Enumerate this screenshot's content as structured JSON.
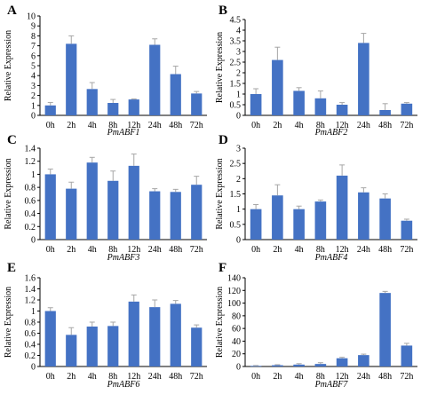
{
  "chart_data": [
    {
      "type": "bar",
      "panel_label": "A",
      "categories": [
        "0h",
        "2h",
        "4h",
        "8h",
        "12h",
        "24h",
        "48h",
        "72h"
      ],
      "values": [
        1.0,
        7.2,
        2.65,
        1.25,
        1.6,
        7.1,
        4.15,
        2.2
      ],
      "errors": [
        0.3,
        0.8,
        0.65,
        0.35,
        0.05,
        0.6,
        0.8,
        0.2
      ],
      "xlabel": "PmABF1",
      "ylabel": "Relative Expression",
      "ylim": [
        0,
        10
      ],
      "yticks": [
        "0",
        "1",
        "2",
        "3",
        "4",
        "5",
        "6",
        "7",
        "8",
        "9",
        "10"
      ],
      "color": "#4472c4"
    },
    {
      "type": "bar",
      "panel_label": "B",
      "categories": [
        "0h",
        "2h",
        "4h",
        "8h",
        "12h",
        "24h",
        "48h",
        "72h"
      ],
      "values": [
        1.0,
        2.6,
        1.15,
        0.8,
        0.5,
        3.4,
        0.25,
        0.55
      ],
      "errors": [
        0.25,
        0.6,
        0.15,
        0.35,
        0.1,
        0.45,
        0.3,
        0.05
      ],
      "xlabel": "PmABF2",
      "ylabel": "Relative Expression",
      "ylim": [
        0,
        4.5
      ],
      "yticks": [
        "0",
        "0.5",
        "1",
        "1.5",
        "2",
        "2.5",
        "3",
        "3.5",
        "4",
        "4.5"
      ],
      "color": "#4472c4"
    },
    {
      "type": "bar",
      "panel_label": "C",
      "categories": [
        "0h",
        "2h",
        "4h",
        "8h",
        "12h",
        "24h",
        "48h",
        "72h"
      ],
      "values": [
        1.0,
        0.78,
        1.18,
        0.9,
        1.13,
        0.74,
        0.73,
        0.84
      ],
      "errors": [
        0.08,
        0.1,
        0.08,
        0.15,
        0.18,
        0.04,
        0.04,
        0.13
      ],
      "xlabel": "PmABF3",
      "ylabel": "Relative Expression",
      "ylim": [
        0,
        1.4
      ],
      "yticks": [
        "0",
        "0.2",
        "0.4",
        "0.6",
        "0.8",
        "1",
        "1.2",
        "1.4"
      ],
      "color": "#4472c4"
    },
    {
      "type": "bar",
      "panel_label": "D",
      "categories": [
        "0h",
        "2h",
        "4h",
        "8h",
        "12h",
        "24h",
        "48h",
        "72h"
      ],
      "values": [
        1.0,
        1.45,
        1.0,
        1.25,
        2.1,
        1.55,
        1.35,
        0.62
      ],
      "errors": [
        0.15,
        0.35,
        0.1,
        0.05,
        0.35,
        0.15,
        0.15,
        0.05
      ],
      "xlabel": "PmABF4",
      "ylabel": "Relative Expression",
      "ylim": [
        0,
        3
      ],
      "yticks": [
        "0",
        "0.5",
        "1",
        "1.5",
        "2",
        "2.5",
        "3"
      ],
      "color": "#4472c4"
    },
    {
      "type": "bar",
      "panel_label": "E",
      "categories": [
        "0h",
        "2h",
        "4h",
        "8h",
        "12h",
        "24h",
        "48h",
        "72h"
      ],
      "values": [
        1.0,
        0.57,
        0.72,
        0.73,
        1.17,
        1.07,
        1.13,
        0.7
      ],
      "errors": [
        0.06,
        0.13,
        0.08,
        0.07,
        0.12,
        0.13,
        0.06,
        0.05
      ],
      "xlabel": "PmABF6",
      "ylabel": "Relative Expression",
      "ylim": [
        0,
        1.6
      ],
      "yticks": [
        "0",
        "0.2",
        "0.4",
        "0.6",
        "0.8",
        "1",
        "1.2",
        "1.4",
        "1.6"
      ],
      "color": "#4472c4"
    },
    {
      "type": "bar",
      "panel_label": "F",
      "categories": [
        "0h",
        "2h",
        "4h",
        "8h",
        "12h",
        "24h",
        "48h",
        "72h"
      ],
      "values": [
        1.0,
        2.0,
        3.0,
        4.0,
        13.0,
        18.0,
        116.0,
        33.0
      ],
      "errors": [
        0.5,
        0.8,
        1.5,
        2.0,
        1.5,
        1.5,
        2.5,
        3.5
      ],
      "xlabel": "PmABF7",
      "ylabel": "Relative Expression",
      "ylim": [
        0,
        140
      ],
      "yticks": [
        "0",
        "20",
        "40",
        "60",
        "80",
        "100",
        "120",
        "140"
      ],
      "color": "#4472c4"
    }
  ]
}
